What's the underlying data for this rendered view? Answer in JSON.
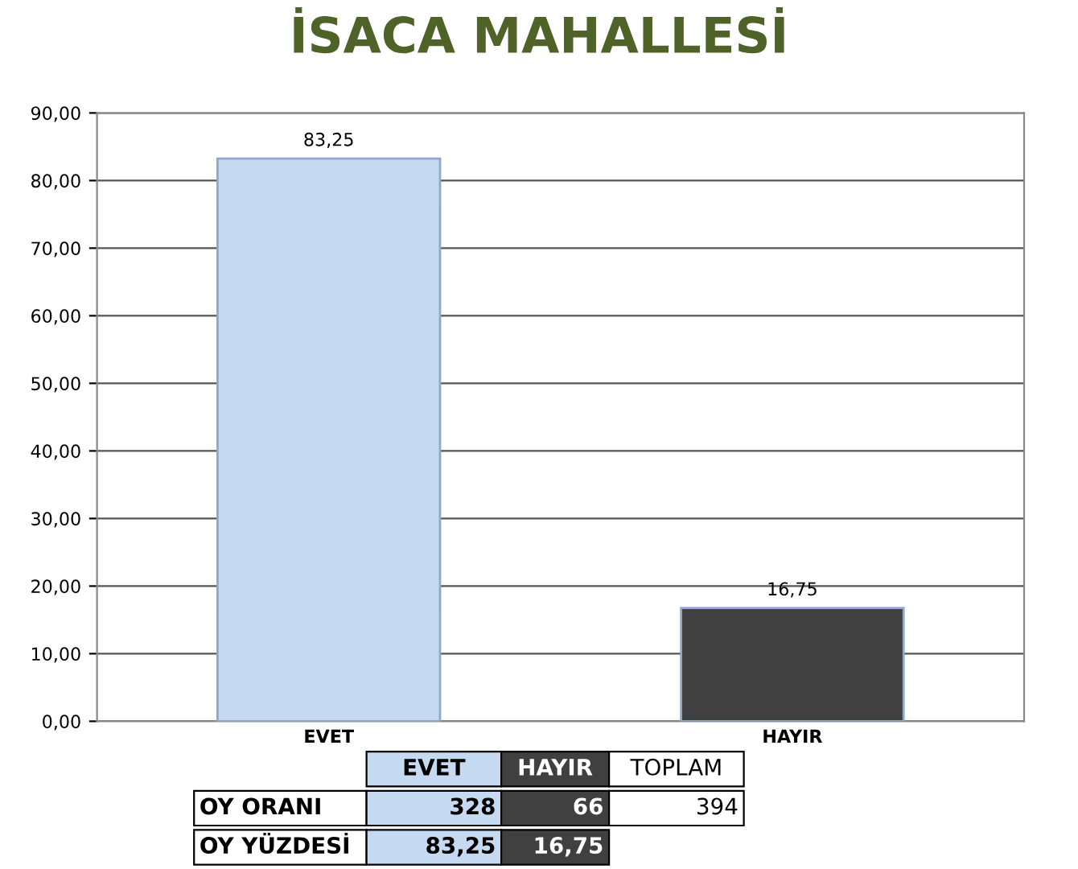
{
  "chart_data": {
    "type": "bar",
    "title": "İSACA MAHALLESİ",
    "categories": [
      "EVET",
      "HAYIR"
    ],
    "values": [
      83.25,
      16.75
    ],
    "colors": [
      "#c5d9f1",
      "#404040"
    ],
    "value_labels": [
      "83,25",
      "16,75"
    ],
    "ylim": [
      0,
      90
    ],
    "yticks": [
      {
        "value": 0,
        "label": "0,00"
      },
      {
        "value": 10,
        "label": "10,00"
      },
      {
        "value": 20,
        "label": "20,00"
      },
      {
        "value": 30,
        "label": "30,00"
      },
      {
        "value": 40,
        "label": "40,00"
      },
      {
        "value": 50,
        "label": "50,00"
      },
      {
        "value": 60,
        "label": "60,00"
      },
      {
        "value": 70,
        "label": "70,00"
      },
      {
        "value": 80,
        "label": "80,00"
      },
      {
        "value": 90,
        "label": "90,00"
      }
    ],
    "grid": "y",
    "annotations": [
      "EVET",
      "HAYIR",
      "TOPLAM",
      "OY ORANI",
      "328",
      "66",
      "394",
      "OY YÜZDESİ",
      "83,25",
      "16,75"
    ]
  }
}
